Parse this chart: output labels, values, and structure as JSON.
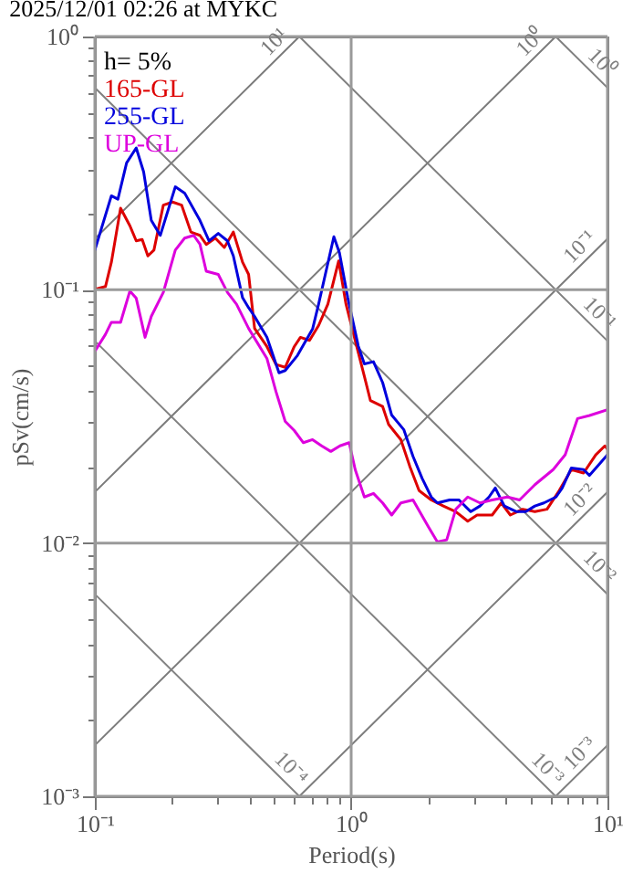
{
  "chart_data": {
    "type": "line",
    "title": "2025/12/01 02:26 at MYKC",
    "xlabel": "Period(s)",
    "ylabel": "pSv(cm/s)",
    "log": "xy",
    "grid": true,
    "legend": "top left",
    "annotations": [
      "h= 5%",
      {
        "text": "10¹",
        "x": 0.628,
        "y": 1
      },
      {
        "text": "10⁰",
        "x": 6.28,
        "y": 1
      },
      {
        "text": "10⁻¹",
        "x": 10,
        "y": 0.159
      },
      {
        "text": "10⁻²",
        "x": 10,
        "y": 0.0159
      },
      {
        "text": "10⁻³",
        "x": 10,
        "y": 0.00159
      },
      {
        "text": "10⁰",
        "x": 10,
        "y": 0.628
      },
      {
        "text": "10⁻¹",
        "x": 10,
        "y": 0.0628
      },
      {
        "text": "10⁻²",
        "x": 10,
        "y": 0.00628
      },
      {
        "text": "10⁻³",
        "x": 6.28,
        "y": 0.001
      },
      {
        "text": "10⁻⁴",
        "x": 0.628,
        "y": 0.001
      }
    ],
    "xlim": [
      0.1,
      10
    ],
    "ylim": [
      0.001,
      1
    ],
    "xticks": [
      {
        "value": 0.1,
        "label": "10⁻¹"
      },
      {
        "value": 0.2,
        "label": null
      },
      {
        "value": 0.3,
        "label": null
      },
      {
        "value": 0.4,
        "label": null
      },
      {
        "value": 0.5,
        "label": null
      },
      {
        "value": 0.6,
        "label": null
      },
      {
        "value": 0.7,
        "label": null
      },
      {
        "value": 0.8,
        "label": null
      },
      {
        "value": 0.9,
        "label": null
      },
      {
        "value": 1,
        "label": "10⁰"
      },
      {
        "value": 2,
        "label": null
      },
      {
        "value": 3,
        "label": null
      },
      {
        "value": 4,
        "label": null
      },
      {
        "value": 5,
        "label": null
      },
      {
        "value": 6,
        "label": null
      },
      {
        "value": 7,
        "label": null
      },
      {
        "value": 8,
        "label": null
      },
      {
        "value": 9,
        "label": null
      },
      {
        "value": 10,
        "label": "10¹"
      }
    ],
    "yticks": [
      {
        "value": 0.001,
        "label": "10⁻³"
      },
      {
        "value": 0.002,
        "label": null
      },
      {
        "value": 0.003,
        "label": null
      },
      {
        "value": 0.004,
        "label": null
      },
      {
        "value": 0.005,
        "label": null
      },
      {
        "value": 0.006,
        "label": null
      },
      {
        "value": 0.007,
        "label": null
      },
      {
        "value": 0.008,
        "label": null
      },
      {
        "value": 0.009,
        "label": null
      },
      {
        "value": 0.01,
        "label": "10⁻²"
      },
      {
        "value": 0.02,
        "label": null
      },
      {
        "value": 0.03,
        "label": null
      },
      {
        "value": 0.04,
        "label": null
      },
      {
        "value": 0.05,
        "label": null
      },
      {
        "value": 0.06,
        "label": null
      },
      {
        "value": 0.07,
        "label": null
      },
      {
        "value": 0.08,
        "label": null
      },
      {
        "value": 0.09,
        "label": null
      },
      {
        "value": 0.1,
        "label": "10⁻¹"
      },
      {
        "value": 0.2,
        "label": null
      },
      {
        "value": 0.3,
        "label": null
      },
      {
        "value": 0.4,
        "label": null
      },
      {
        "value": 0.5,
        "label": null
      },
      {
        "value": 0.6,
        "label": null
      },
      {
        "value": 0.7,
        "label": null
      },
      {
        "value": 0.8,
        "label": null
      },
      {
        "value": 0.9,
        "label": null
      },
      {
        "value": 1,
        "label": "10⁰"
      }
    ],
    "series": [
      {
        "color": "#7a7a7a",
        "x": [
          0.1,
          0.628
        ],
        "values": [
          0.159,
          1
        ]
      },
      {
        "color": "#7b7b7b",
        "x": [
          0.1,
          6.28
        ],
        "values": [
          0.0159,
          1
        ]
      },
      {
        "color": "#7c7c7c",
        "x": [
          0.1,
          10
        ],
        "values": [
          0.00159,
          0.159
        ]
      },
      {
        "color": "#7d7d7d",
        "x": [
          0.628,
          10
        ],
        "values": [
          0.001,
          0.0159
        ]
      },
      {
        "color": "#7e7e7e",
        "x": [
          6.28,
          10
        ],
        "values": [
          0.001,
          0.00159
        ]
      },
      {
        "color": "#7f7f7f",
        "x": [
          6.28,
          10
        ],
        "values": [
          1,
          0.628
        ]
      },
      {
        "color": "#808080",
        "x": [
          0.628,
          10
        ],
        "values": [
          1,
          0.0628
        ]
      },
      {
        "color": "#818181",
        "x": [
          0.1,
          10
        ],
        "values": [
          0.628,
          0.00628
        ]
      },
      {
        "color": "#828282",
        "x": [
          0.1,
          6.28
        ],
        "values": [
          0.0628,
          0.001
        ]
      },
      {
        "color": "#838383",
        "x": [
          0.1,
          0.628
        ],
        "values": [
          0.00628,
          0.001
        ]
      },
      {
        "name": "165-GL",
        "color": "#dd0000",
        "x": [
          0.1,
          0.11,
          0.116,
          0.126,
          0.137,
          0.145,
          0.153,
          0.161,
          0.17,
          0.185,
          0.201,
          0.218,
          0.237,
          0.257,
          0.272,
          0.295,
          0.32,
          0.347,
          0.377,
          0.398,
          0.42,
          0.469,
          0.509,
          0.553,
          0.6,
          0.634,
          0.688,
          0.747,
          0.811,
          0.894,
          0.955,
          1.037,
          1.126,
          1.189,
          1.327,
          1.4,
          1.563,
          1.696,
          1.841,
          2.054,
          2.29,
          2.56,
          2.85,
          3.1,
          3.55,
          3.85,
          4.18,
          4.67,
          5.21,
          5.81,
          6.48,
          7.23,
          8.07,
          9,
          9.77,
          10
        ],
        "values": [
          0.1005,
          0.103,
          0.1285,
          0.21,
          0.179,
          0.156,
          0.158,
          0.136,
          0.1435,
          0.216,
          0.222,
          0.216,
          0.169,
          0.164,
          0.151,
          0.16,
          0.147,
          0.169,
          0.1285,
          0.115,
          0.0704,
          0.0597,
          0.0507,
          0.0494,
          0.0597,
          0.0649,
          0.0631,
          0.0724,
          0.0877,
          0.13,
          0.0877,
          0.0631,
          0.0455,
          0.0365,
          0.0346,
          0.0294,
          0.0256,
          0.02,
          0.0161,
          0.0148,
          0.014,
          0.0133,
          0.0122,
          0.0129,
          0.0129,
          0.0144,
          0.0129,
          0.0136,
          0.0133,
          0.0136,
          0.0161,
          0.0195,
          0.0189,
          0.0223,
          0.0242,
          0.0235
        ]
      },
      {
        "name": "255-GL",
        "color": "#0000dd",
        "x": [
          0.1,
          0.116,
          0.123,
          0.133,
          0.145,
          0.155,
          0.166,
          0.18,
          0.206,
          0.224,
          0.257,
          0.279,
          0.303,
          0.329,
          0.347,
          0.377,
          0.398,
          0.42,
          0.469,
          0.523,
          0.553,
          0.617,
          0.707,
          0.747,
          0.856,
          0.9,
          0.97,
          1.066,
          1.126,
          1.222,
          1.327,
          1.439,
          1.606,
          1.743,
          1.892,
          2.054,
          2.17,
          2.42,
          2.63,
          2.93,
          3.18,
          3.45,
          3.65,
          3.96,
          4.42,
          4.8,
          5.21,
          5.65,
          6.3,
          6.66,
          7.23,
          8.07,
          8.51,
          10
        ],
        "values": [
          0.1435,
          0.235,
          0.228,
          0.317,
          0.363,
          0.292,
          0.188,
          0.164,
          0.255,
          0.241,
          0.188,
          0.156,
          0.167,
          0.156,
          0.136,
          0.093,
          0.085,
          0.0785,
          0.065,
          0.047,
          0.048,
          0.055,
          0.07,
          0.088,
          0.162,
          0.14,
          0.093,
          0.06,
          0.051,
          0.052,
          0.043,
          0.032,
          0.028,
          0.022,
          0.018,
          0.0152,
          0.0144,
          0.0148,
          0.0148,
          0.0133,
          0.014,
          0.0152,
          0.0165,
          0.014,
          0.0133,
          0.0133,
          0.014,
          0.0144,
          0.0152,
          0.0165,
          0.0198,
          0.0195,
          0.0185,
          0.0223
        ]
      },
      {
        "name": "UP-GL",
        "color": "#dd00dd",
        "x": [
          0.1,
          0.11,
          0.116,
          0.126,
          0.137,
          0.145,
          0.157,
          0.166,
          0.185,
          0.206,
          0.224,
          0.243,
          0.257,
          0.272,
          0.303,
          0.329,
          0.357,
          0.398,
          0.469,
          0.509,
          0.553,
          0.6,
          0.651,
          0.707,
          0.767,
          0.833,
          0.904,
          0.982,
          1.037,
          1.126,
          1.222,
          1.327,
          1.439,
          1.563,
          1.743,
          2,
          2.17,
          2.36,
          2.56,
          2.85,
          3.18,
          3.55,
          4.07,
          4.54,
          5.21,
          6.14,
          6.84,
          7.64,
          8.51,
          10
        ],
        "values": [
          0.0572,
          0.0667,
          0.0744,
          0.0744,
          0.0989,
          0.0926,
          0.0649,
          0.0785,
          0.0977,
          0.1435,
          0.16,
          0.164,
          0.1514,
          0.1184,
          0.115,
          0.0977,
          0.0877,
          0.0704,
          0.0536,
          0.0396,
          0.0302,
          0.0278,
          0.0249,
          0.0256,
          0.0242,
          0.023,
          0.0242,
          0.0249,
          0.0195,
          0.0152,
          0.0157,
          0.0144,
          0.0129,
          0.0144,
          0.0148,
          0.0116,
          0.0101,
          0.0103,
          0.0136,
          0.0152,
          0.0144,
          0.0148,
          0.0152,
          0.0148,
          0.017,
          0.0195,
          0.0223,
          0.031,
          0.0319,
          0.0336
        ]
      }
    ]
  }
}
